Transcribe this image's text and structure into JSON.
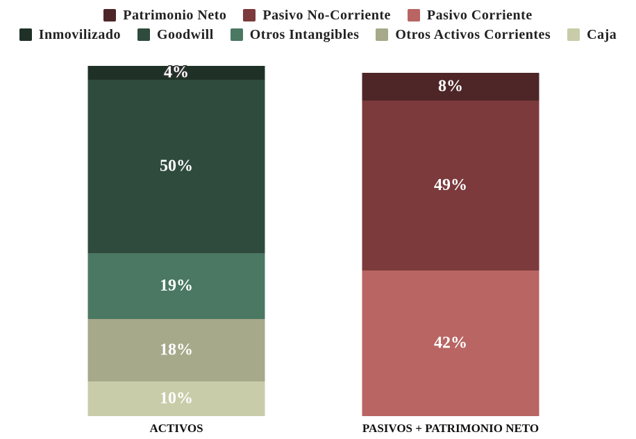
{
  "chart_data": {
    "type": "stacked_bar",
    "categories": [
      "ACTIVOS",
      "PASIVOS + PATRIMONIO NETO"
    ],
    "series": [
      {
        "name": "Patrimonio Neto",
        "color": "#4e2628",
        "values": [
          null,
          8
        ],
        "value_labels": [
          null,
          "8%"
        ]
      },
      {
        "name": "Pasivo No-Corriente",
        "color": "#7c3a3c",
        "values": [
          null,
          49
        ],
        "value_labels": [
          null,
          "49%"
        ]
      },
      {
        "name": "Pasivo Corriente",
        "color": "#b96563",
        "values": [
          null,
          42
        ],
        "value_labels": [
          null,
          "42%"
        ]
      },
      {
        "name": "Inmovilizado",
        "color": "#1f3127",
        "values": [
          4,
          null
        ],
        "value_labels": [
          "4%",
          null
        ]
      },
      {
        "name": "Goodwill",
        "color": "#2f4b3d",
        "values": [
          50,
          null
        ],
        "value_labels": [
          "50%",
          null
        ]
      },
      {
        "name": "Otros Intangibles",
        "color": "#4a7862",
        "values": [
          19,
          null
        ],
        "value_labels": [
          "19%",
          null
        ]
      },
      {
        "name": "Otros Activos Corrientes",
        "color": "#a6a98a",
        "values": [
          18,
          null
        ],
        "value_labels": [
          "18%",
          null
        ]
      },
      {
        "name": "Caja",
        "color": "#c8cca8",
        "values": [
          10,
          null
        ],
        "value_labels": [
          "10%",
          null
        ]
      }
    ],
    "ylim": [
      0,
      101
    ]
  }
}
